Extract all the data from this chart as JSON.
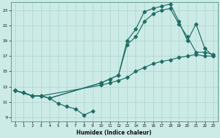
{
  "xlabel": "Humidex (Indice chaleur)",
  "background_color": "#cceae6",
  "grid_color": "#aad4cf",
  "line_color": "#1e6e65",
  "xlim": [
    -0.5,
    23.5
  ],
  "ylim": [
    8.5,
    24.0
  ],
  "xticks": [
    0,
    1,
    2,
    3,
    4,
    5,
    6,
    7,
    8,
    9,
    10,
    11,
    12,
    13,
    14,
    15,
    16,
    17,
    18,
    19,
    20,
    21,
    22,
    23
  ],
  "yticks": [
    9,
    11,
    13,
    15,
    17,
    19,
    21,
    23
  ],
  "series": [
    {
      "x": [
        0,
        1,
        2,
        3,
        4,
        5,
        6,
        7,
        8,
        9
      ],
      "y": [
        12.5,
        12.2,
        11.8,
        11.8,
        11.5,
        10.8,
        10.4,
        10.1,
        9.3,
        9.8
      ],
      "style": "-",
      "marker": "D",
      "markersize": 2.5
    },
    {
      "x": [
        0,
        1,
        2,
        3,
        10,
        11,
        12,
        13,
        14,
        15,
        16,
        17,
        18,
        19,
        20,
        21,
        22,
        23
      ],
      "y": [
        12.5,
        12.2,
        11.8,
        11.8,
        13.2,
        13.5,
        13.8,
        14.2,
        15.0,
        15.5,
        16.0,
        16.3,
        16.5,
        16.8,
        17.0,
        17.2,
        17.0,
        17.0
      ],
      "style": "-",
      "marker": "D",
      "markersize": 2.5
    },
    {
      "x": [
        0,
        2,
        3,
        4,
        10,
        11,
        12,
        13,
        14,
        15,
        16,
        17,
        18,
        19,
        20,
        21,
        22,
        23
      ],
      "y": [
        12.5,
        11.8,
        11.8,
        11.5,
        13.5,
        14.0,
        14.5,
        18.5,
        19.5,
        21.5,
        22.5,
        23.0,
        23.2,
        21.2,
        19.5,
        17.5,
        17.5,
        17.2
      ],
      "style": "-",
      "marker": "D",
      "markersize": 2.5
    },
    {
      "x": [
        0,
        2,
        3,
        4,
        10,
        11,
        12,
        13,
        14,
        15,
        16,
        17,
        18,
        19,
        20,
        21,
        22,
        23
      ],
      "y": [
        12.5,
        11.8,
        11.8,
        11.5,
        13.5,
        14.0,
        14.5,
        19.0,
        20.5,
        22.8,
        23.2,
        23.5,
        23.8,
        21.5,
        19.0,
        21.2,
        18.0,
        17.0
      ],
      "style": "-",
      "marker": "D",
      "markersize": 2.5
    }
  ]
}
